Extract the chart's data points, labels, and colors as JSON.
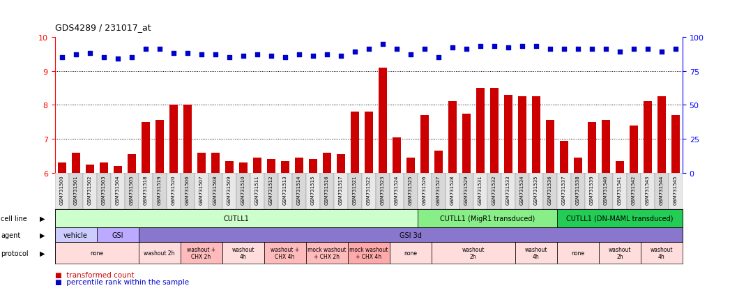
{
  "title": "GDS4289 / 231017_at",
  "samples": [
    "GSM731500",
    "GSM731501",
    "GSM731502",
    "GSM731503",
    "GSM731504",
    "GSM731505",
    "GSM731518",
    "GSM731519",
    "GSM731520",
    "GSM731506",
    "GSM731507",
    "GSM731508",
    "GSM731509",
    "GSM731510",
    "GSM731511",
    "GSM731512",
    "GSM731513",
    "GSM731514",
    "GSM731515",
    "GSM731516",
    "GSM731517",
    "GSM731521",
    "GSM731522",
    "GSM731523",
    "GSM731524",
    "GSM731525",
    "GSM731526",
    "GSM731527",
    "GSM731528",
    "GSM731529",
    "GSM731531",
    "GSM731532",
    "GSM731533",
    "GSM731534",
    "GSM731535",
    "GSM731536",
    "GSM731537",
    "GSM731538",
    "GSM731539",
    "GSM731540",
    "GSM731541",
    "GSM731542",
    "GSM731543",
    "GSM731544",
    "GSM731545"
  ],
  "bar_values": [
    6.3,
    6.6,
    6.25,
    6.3,
    6.2,
    6.55,
    7.5,
    7.55,
    8.0,
    8.0,
    6.6,
    6.6,
    6.35,
    6.3,
    6.45,
    6.4,
    6.35,
    6.45,
    6.4,
    6.6,
    6.55,
    7.8,
    7.8,
    9.1,
    7.05,
    6.45,
    7.7,
    6.65,
    8.1,
    7.75,
    8.5,
    8.5,
    8.3,
    8.25,
    8.25,
    7.55,
    6.95,
    6.45,
    7.5,
    7.55,
    6.35,
    7.4,
    8.1,
    8.25,
    7.7
  ],
  "dot_values": [
    85,
    87,
    88,
    85,
    84,
    85,
    91,
    91,
    88,
    88,
    87,
    87,
    85,
    86,
    87,
    86,
    85,
    87,
    86,
    87,
    86,
    89,
    91,
    95,
    91,
    87,
    91,
    85,
    92,
    91,
    93,
    93,
    92,
    93,
    93,
    91,
    91,
    91,
    91,
    91,
    89,
    91,
    91,
    89,
    91
  ],
  "ylim": [
    6.0,
    10.0
  ],
  "y2lim": [
    0,
    100
  ],
  "yticks": [
    6,
    7,
    8,
    9,
    10
  ],
  "y2ticks": [
    0,
    25,
    50,
    75,
    100
  ],
  "bar_color": "#cc0000",
  "dot_color": "#0000cc",
  "cell_line_groups": [
    {
      "label": "CUTLL1",
      "start": 0,
      "end": 26,
      "color": "#ccffcc"
    },
    {
      "label": "CUTLL1 (MigR1 transduced)",
      "start": 26,
      "end": 36,
      "color": "#88ee88"
    },
    {
      "label": "CUTLL1 (DN-MAML transduced)",
      "start": 36,
      "end": 45,
      "color": "#22cc55"
    }
  ],
  "agent_groups": [
    {
      "label": "vehicle",
      "start": 0,
      "end": 3,
      "color": "#ccccff"
    },
    {
      "label": "GSI",
      "start": 3,
      "end": 6,
      "color": "#bbaaff"
    },
    {
      "label": "GSI 3d",
      "start": 6,
      "end": 45,
      "color": "#8877cc"
    }
  ],
  "protocol_groups": [
    {
      "label": "none",
      "start": 0,
      "end": 6,
      "color": "#ffdddd"
    },
    {
      "label": "washout 2h",
      "start": 6,
      "end": 9,
      "color": "#ffdddd"
    },
    {
      "label": "washout +\nCHX 2h",
      "start": 9,
      "end": 12,
      "color": "#ffbbbb"
    },
    {
      "label": "washout\n4h",
      "start": 12,
      "end": 15,
      "color": "#ffdddd"
    },
    {
      "label": "washout +\nCHX 4h",
      "start": 15,
      "end": 18,
      "color": "#ffbbbb"
    },
    {
      "label": "mock washout\n+ CHX 2h",
      "start": 18,
      "end": 21,
      "color": "#ffbbbb"
    },
    {
      "label": "mock washout\n+ CHX 4h",
      "start": 21,
      "end": 24,
      "color": "#ffaaaa"
    },
    {
      "label": "none",
      "start": 24,
      "end": 27,
      "color": "#ffdddd"
    },
    {
      "label": "washout\n2h",
      "start": 27,
      "end": 33,
      "color": "#ffdddd"
    },
    {
      "label": "washout\n4h",
      "start": 33,
      "end": 36,
      "color": "#ffdddd"
    },
    {
      "label": "none",
      "start": 36,
      "end": 39,
      "color": "#ffdddd"
    },
    {
      "label": "washout\n2h",
      "start": 39,
      "end": 42,
      "color": "#ffdddd"
    },
    {
      "label": "washout\n4h",
      "start": 42,
      "end": 45,
      "color": "#ffdddd"
    }
  ]
}
